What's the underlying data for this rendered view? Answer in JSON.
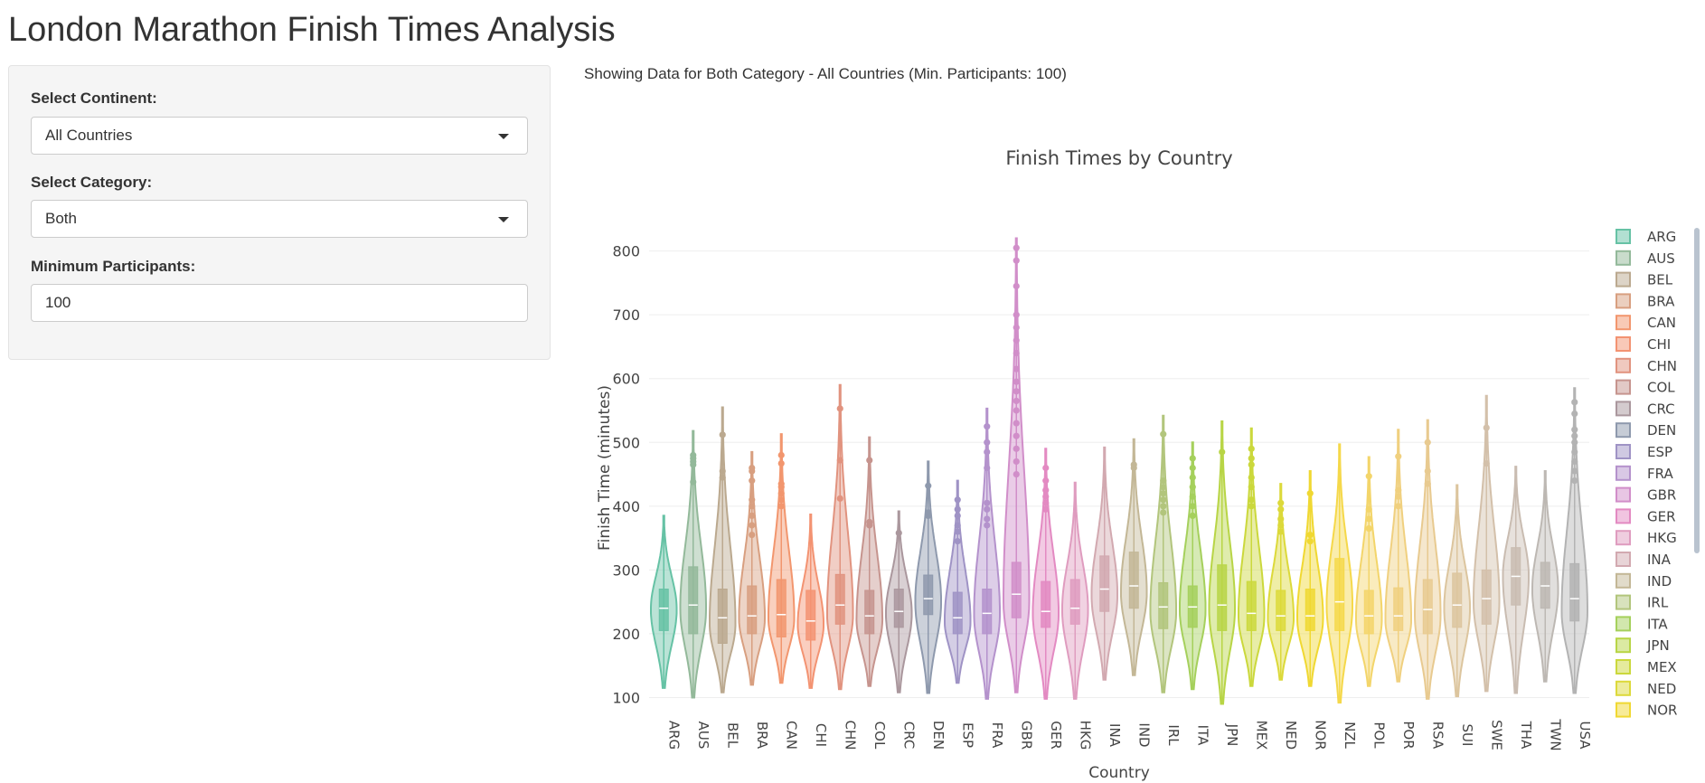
{
  "page": {
    "title": "London Marathon Finish Times Analysis"
  },
  "sidebar": {
    "continent": {
      "label": "Select Continent:",
      "value": "All Countries"
    },
    "category": {
      "label": "Select Category:",
      "value": "Both"
    },
    "min_participants": {
      "label": "Minimum Participants:",
      "value": "100"
    }
  },
  "subtitle": "Showing Data for Both Category - All Countries (Min. Participants: 100)",
  "chart_data": {
    "type": "violin",
    "title": "Finish Times by Country",
    "xlabel": "Country",
    "ylabel": "Finish Time (minutes)",
    "ylim": [
      95,
      825
    ],
    "yticks": [
      100,
      200,
      300,
      400,
      500,
      600,
      700,
      800
    ],
    "grid": true,
    "legend_position": "right",
    "series": [
      {
        "name": "ARG",
        "color": "#66c2a5",
        "min": 115,
        "q1": 205,
        "median": 240,
        "q3": 270,
        "max": 385,
        "mode": 238,
        "outliers": []
      },
      {
        "name": "AUS",
        "color": "#93b99a",
        "min": 100,
        "q1": 200,
        "median": 245,
        "q3": 305,
        "max": 518,
        "mode": 240,
        "outliers": [
          438,
          465,
          470,
          475,
          480
        ]
      },
      {
        "name": "BEL",
        "color": "#bba98f",
        "min": 108,
        "q1": 185,
        "median": 225,
        "q3": 270,
        "max": 555,
        "mode": 215,
        "outliers": [
          445,
          455,
          512
        ]
      },
      {
        "name": "BRA",
        "color": "#d89f80",
        "min": 120,
        "q1": 200,
        "median": 228,
        "q3": 275,
        "max": 485,
        "mode": 225,
        "outliers": [
          355,
          370,
          385,
          400,
          410,
          440,
          455,
          460
        ]
      },
      {
        "name": "CAN",
        "color": "#f2966e",
        "min": 123,
        "q1": 195,
        "median": 230,
        "q3": 285,
        "max": 513,
        "mode": 225,
        "outliers": [
          400,
          410,
          420,
          430,
          435,
          467,
          480
        ]
      },
      {
        "name": "CHI",
        "color": "#f39372",
        "min": 115,
        "q1": 190,
        "median": 220,
        "q3": 268,
        "max": 387,
        "mode": 215,
        "outliers": []
      },
      {
        "name": "CHN",
        "color": "#e1937f",
        "min": 113,
        "q1": 215,
        "median": 245,
        "q3": 293,
        "max": 590,
        "mode": 230,
        "outliers": [
          412,
          472,
          553
        ]
      },
      {
        "name": "COL",
        "color": "#c6948e",
        "min": 118,
        "q1": 200,
        "median": 228,
        "q3": 268,
        "max": 508,
        "mode": 222,
        "outliers": [
          370,
          375,
          472
        ]
      },
      {
        "name": "CRC",
        "color": "#aa979d",
        "min": 108,
        "q1": 210,
        "median": 235,
        "q3": 270,
        "max": 392,
        "mode": 232,
        "outliers": [
          358
        ]
      },
      {
        "name": "DEN",
        "color": "#8e99ad",
        "min": 107,
        "q1": 230,
        "median": 255,
        "q3": 292,
        "max": 470,
        "mode": 250,
        "outliers": [
          385,
          390,
          432
        ]
      },
      {
        "name": "ESP",
        "color": "#9f93c5",
        "min": 123,
        "q1": 200,
        "median": 225,
        "q3": 265,
        "max": 440,
        "mode": 220,
        "outliers": [
          345,
          360,
          370,
          385,
          395,
          410
        ]
      },
      {
        "name": "FRA",
        "color": "#b492cc",
        "min": 98,
        "q1": 200,
        "median": 232,
        "q3": 270,
        "max": 553,
        "mode": 230,
        "outliers": [
          370,
          380,
          395,
          405,
          460,
          485,
          500,
          525
        ]
      },
      {
        "name": "GBR",
        "color": "#d18ec9",
        "min": 108,
        "q1": 225,
        "median": 262,
        "q3": 312,
        "max": 820,
        "mode": 250,
        "outliers": [
          450,
          470,
          490,
          510,
          530,
          550,
          565,
          580,
          595,
          615,
          640,
          660,
          680,
          700,
          745,
          785,
          805
        ]
      },
      {
        "name": "GER",
        "color": "#e38ac2",
        "min": 98,
        "q1": 210,
        "median": 235,
        "q3": 282,
        "max": 490,
        "mode": 232,
        "outliers": [
          395,
          405,
          415,
          425,
          440,
          460
        ]
      },
      {
        "name": "HKG",
        "color": "#df9cbf",
        "min": 98,
        "q1": 215,
        "median": 240,
        "q3": 285,
        "max": 437,
        "mode": 238,
        "outliers": []
      },
      {
        "name": "INA",
        "color": "#d2a9b0",
        "min": 128,
        "q1": 235,
        "median": 270,
        "q3": 322,
        "max": 492,
        "mode": 260,
        "outliers": []
      },
      {
        "name": "IND",
        "color": "#c3b796",
        "min": 135,
        "q1": 240,
        "median": 275,
        "q3": 328,
        "max": 505,
        "mode": 265,
        "outliers": [
          460,
          465
        ]
      },
      {
        "name": "IRL",
        "color": "#b2c57c",
        "min": 108,
        "q1": 208,
        "median": 242,
        "q3": 280,
        "max": 542,
        "mode": 235,
        "outliers": [
          390,
          400,
          410,
          420,
          430,
          440,
          513
        ]
      },
      {
        "name": "ITA",
        "color": "#a5d05c",
        "min": 113,
        "q1": 210,
        "median": 242,
        "q3": 275,
        "max": 500,
        "mode": 238,
        "outliers": [
          385,
          400,
          415,
          430,
          445,
          460,
          475
        ]
      },
      {
        "name": "JPN",
        "color": "#b8d546",
        "min": 90,
        "q1": 205,
        "median": 245,
        "q3": 308,
        "max": 533,
        "mode": 240,
        "outliers": [
          485
        ]
      },
      {
        "name": "MEX",
        "color": "#cbd83c",
        "min": 118,
        "q1": 205,
        "median": 232,
        "q3": 282,
        "max": 522,
        "mode": 228,
        "outliers": [
          400,
          410,
          430,
          445,
          465,
          475,
          490
        ]
      },
      {
        "name": "NED",
        "color": "#dcd93a",
        "min": 128,
        "q1": 205,
        "median": 228,
        "q3": 268,
        "max": 435,
        "mode": 225,
        "outliers": [
          360,
          370,
          380,
          395,
          405
        ]
      },
      {
        "name": "NOR",
        "color": "#f0d832",
        "min": 118,
        "q1": 205,
        "median": 228,
        "q3": 270,
        "max": 455,
        "mode": 225,
        "outliers": [
          345,
          355,
          420
        ]
      },
      {
        "name": "NZL",
        "color": "#f5d84a",
        "min": 92,
        "q1": 205,
        "median": 250,
        "q3": 318,
        "max": 497,
        "mode": 245,
        "outliers": []
      },
      {
        "name": "POL",
        "color": "#f3d56a",
        "min": 118,
        "q1": 200,
        "median": 228,
        "q3": 268,
        "max": 477,
        "mode": 222,
        "outliers": [
          365,
          380,
          395,
          447
        ]
      },
      {
        "name": "POR",
        "color": "#f0d07f",
        "min": 125,
        "q1": 205,
        "median": 228,
        "q3": 272,
        "max": 520,
        "mode": 222,
        "outliers": [
          400,
          415,
          425,
          478
        ]
      },
      {
        "name": "RSA",
        "color": "#e8ca90",
        "min": 98,
        "q1": 200,
        "median": 238,
        "q3": 285,
        "max": 535,
        "mode": 230,
        "outliers": [
          435,
          455,
          500
        ]
      },
      {
        "name": "SUI",
        "color": "#dcc59e",
        "min": 102,
        "q1": 210,
        "median": 245,
        "q3": 295,
        "max": 433,
        "mode": 240,
        "outliers": []
      },
      {
        "name": "SWE",
        "color": "#d3c0aa",
        "min": 110,
        "q1": 215,
        "median": 255,
        "q3": 300,
        "max": 573,
        "mode": 250,
        "outliers": [
          467,
          523
        ]
      },
      {
        "name": "THA",
        "color": "#c9bcb1",
        "min": 107,
        "q1": 245,
        "median": 290,
        "q3": 335,
        "max": 462,
        "mode": 290,
        "outliers": []
      },
      {
        "name": "TWN",
        "color": "#bdb8b3",
        "min": 125,
        "q1": 240,
        "median": 275,
        "q3": 312,
        "max": 455,
        "mode": 270,
        "outliers": []
      },
      {
        "name": "USA",
        "color": "#b3b3b3",
        "min": 107,
        "q1": 220,
        "median": 255,
        "q3": 310,
        "max": 585,
        "mode": 235,
        "outliers": [
          440,
          455,
          470,
          485,
          500,
          510,
          520,
          545,
          563
        ]
      }
    ]
  }
}
